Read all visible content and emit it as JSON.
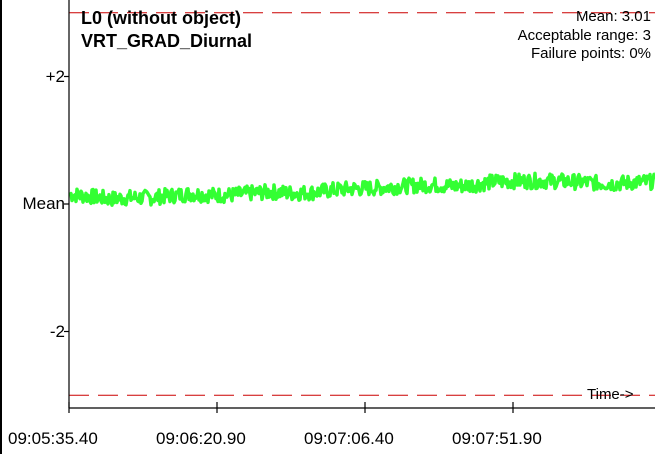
{
  "chart_data": {
    "type": "line",
    "title": "L0 (without object)",
    "subtitle": "VRT_GRAD_Diurnal",
    "stats": {
      "mean": "Mean: 3.01",
      "acceptable_range": "Acceptable range: 3",
      "failure_points": "Failure points: 0%"
    },
    "xlabel": "Time->",
    "ylabel": "",
    "y_tick_labels": [
      "+2",
      "Mean",
      "-2"
    ],
    "y_tick_values": [
      2,
      0,
      -2
    ],
    "ylim": [
      -3.2,
      3.2
    ],
    "x_tick_labels": [
      "09:05:35.40",
      "09:06:20.90",
      "09:07:06.40",
      "09:07:51.90"
    ],
    "limit_lines": [
      3,
      -3
    ],
    "grid": false,
    "series": [
      {
        "values": [
          0.15,
          0.12,
          0.08,
          0.1,
          0.1,
          0.13,
          0.16,
          0.14,
          0.14,
          0.17,
          0.19,
          0.17,
          0.18,
          0.22,
          0.24,
          0.25,
          0.27,
          0.29,
          0.3,
          0.28,
          0.3,
          0.35,
          0.36,
          0.36,
          0.36,
          0.35,
          0.33,
          0.32,
          0.34,
          0.35
        ],
        "spread": 0.12
      }
    ],
    "colors": {
      "series": "#33ff33",
      "limit": "#cc0000",
      "axis": "#000000",
      "frame_left": "#000000"
    }
  }
}
